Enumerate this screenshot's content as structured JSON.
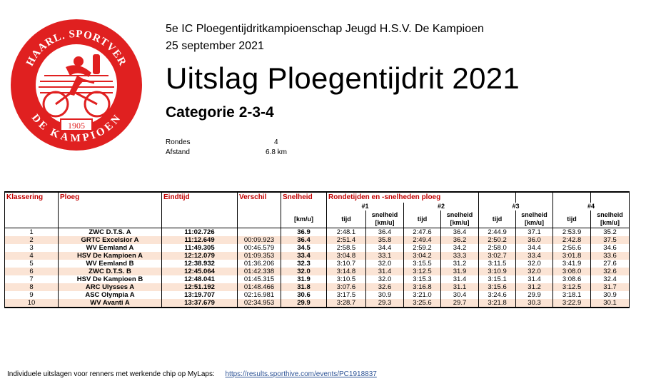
{
  "logo": {
    "icon": "club-seal-logo",
    "top_text": "HAARL. SPORTVER",
    "year": "1905",
    "bottom_text": "DE KAMPIOEN",
    "color": "#e02020"
  },
  "header": {
    "line1": "5e IC Ploegentijdritkampioenschap Jeugd H.S.V. De Kampioen",
    "line2": "25 september 2021",
    "title": "Uitslag Ploegentijdrit 2021",
    "category": "Categorie 2-3-4"
  },
  "info": {
    "rondes_label": "Rondes",
    "rondes_value": "4",
    "afstand_label": "Afstand",
    "afstand_value": "6.8 km"
  },
  "table": {
    "headers": {
      "klassering": "Klassering",
      "ploeg": "Ploeg",
      "eindtijd": "Eindtijd",
      "verschil": "Verschil",
      "snelheid": "Snelheid",
      "ronde": "Rondetijden en -snelheden ploeg"
    },
    "rounds": [
      "#1",
      "#2",
      "#3",
      "#4"
    ],
    "unit_snelheid": "[km/u]",
    "tijd_label": "tijd",
    "snelheid_label": "snelheid",
    "rows": [
      {
        "rank": "1",
        "team": "ZWC D.T.S. A",
        "time": "11:02.726",
        "diff": "",
        "speed": "36.9",
        "r1t": "2:48.1",
        "r1s": "36.4",
        "r2t": "2:47.6",
        "r2s": "36.4",
        "r3t": "2:44.9",
        "r3s": "37.1",
        "r4t": "2:53.9",
        "r4s": "35.2"
      },
      {
        "rank": "2",
        "team": "GRTC Excelsior A",
        "time": "11:12.649",
        "diff": "00:09.923",
        "speed": "36.4",
        "r1t": "2:51.4",
        "r1s": "35.8",
        "r2t": "2:49.4",
        "r2s": "36.2",
        "r3t": "2:50.2",
        "r3s": "36.0",
        "r4t": "2:42.8",
        "r4s": "37.5"
      },
      {
        "rank": "3",
        "team": "WV Eemland A",
        "time": "11:49.305",
        "diff": "00:46.579",
        "speed": "34.5",
        "r1t": "2:58.5",
        "r1s": "34.4",
        "r2t": "2:59.2",
        "r2s": "34.2",
        "r3t": "2:58.0",
        "r3s": "34.4",
        "r4t": "2:56.6",
        "r4s": "34.6"
      },
      {
        "rank": "4",
        "team": "HSV De Kampioen A",
        "time": "12:12.079",
        "diff": "01:09.353",
        "speed": "33.4",
        "r1t": "3:04.8",
        "r1s": "33.1",
        "r2t": "3:04.2",
        "r2s": "33.3",
        "r3t": "3:02.7",
        "r3s": "33.4",
        "r4t": "3:01.8",
        "r4s": "33.6"
      },
      {
        "rank": "5",
        "team": "WV Eemland B",
        "time": "12:38.932",
        "diff": "01:36.206",
        "speed": "32.3",
        "r1t": "3:10.7",
        "r1s": "32.0",
        "r2t": "3:15.5",
        "r2s": "31.2",
        "r3t": "3:11.5",
        "r3s": "32.0",
        "r4t": "3:41.9",
        "r4s": "27.6"
      },
      {
        "rank": "6",
        "team": "ZWC D.T.S. B",
        "time": "12:45.064",
        "diff": "01:42.338",
        "speed": "32.0",
        "r1t": "3:14.8",
        "r1s": "31.4",
        "r2t": "3:12.5",
        "r2s": "31.9",
        "r3t": "3:10.9",
        "r3s": "32.0",
        "r4t": "3:08.0",
        "r4s": "32.6"
      },
      {
        "rank": "7",
        "team": "HSV De Kampioen B",
        "time": "12:48.041",
        "diff": "01:45.315",
        "speed": "31.9",
        "r1t": "3:10.5",
        "r1s": "32.0",
        "r2t": "3:15.3",
        "r2s": "31.4",
        "r3t": "3:15.1",
        "r3s": "31.4",
        "r4t": "3:08.6",
        "r4s": "32.4"
      },
      {
        "rank": "8",
        "team": "ARC Ulysses A",
        "time": "12:51.192",
        "diff": "01:48.466",
        "speed": "31.8",
        "r1t": "3:07.6",
        "r1s": "32.6",
        "r2t": "3:16.8",
        "r2s": "31.1",
        "r3t": "3:15.6",
        "r3s": "31.2",
        "r4t": "3:12.5",
        "r4s": "31.7"
      },
      {
        "rank": "9",
        "team": "ASC Olympia A",
        "time": "13:19.707",
        "diff": "02:16.981",
        "speed": "30.6",
        "r1t": "3:17.5",
        "r1s": "30.9",
        "r2t": "3:21.0",
        "r2s": "30.4",
        "r3t": "3:24.6",
        "r3s": "29.9",
        "r4t": "3:18.1",
        "r4s": "30.9"
      },
      {
        "rank": "10",
        "team": "WV Avanti A",
        "time": "13:37.679",
        "diff": "02:34.953",
        "speed": "29.9",
        "r1t": "3:28.7",
        "r1s": "29.3",
        "r2t": "3:25.6",
        "r2s": "29.7",
        "r3t": "3:21.8",
        "r3s": "30.3",
        "r4t": "3:22.9",
        "r4s": "30.1"
      }
    ]
  },
  "footer": {
    "text": "Individuele uitslagen voor renners met werkende chip op MyLaps:",
    "link": "https://results.sporthive.com/events/PC1918837",
    "link_color": "#2f5597"
  }
}
